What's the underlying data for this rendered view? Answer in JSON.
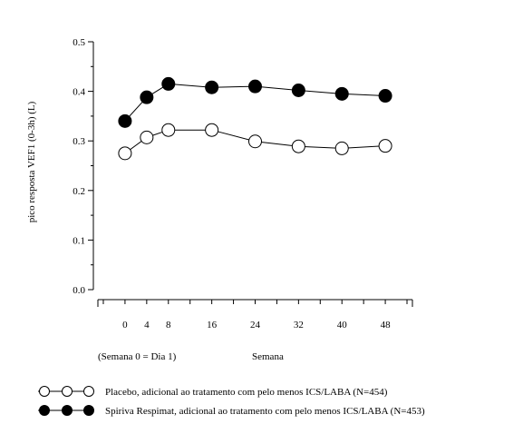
{
  "chart_data": {
    "type": "line",
    "title": "",
    "xlabel": "Semana",
    "x_note": "(Semana 0 = Dia 1)",
    "ylabel": "pico resposta VEF1 (0-3h) (L)",
    "x": [
      0,
      4,
      8,
      16,
      24,
      32,
      40,
      48
    ],
    "x_tick_labels": [
      "0",
      "4",
      "8",
      "16",
      "24",
      "32",
      "40",
      "48"
    ],
    "xlim": [
      -5,
      53
    ],
    "ylim": [
      0.0,
      0.5
    ],
    "y_ticks": [
      0.0,
      0.1,
      0.2,
      0.3,
      0.4,
      0.5
    ],
    "y_tick_labels": [
      "0.0",
      "0.1",
      "0.2",
      "0.3",
      "0.4",
      "0.5"
    ],
    "grid": false,
    "legend_position": "bottom",
    "series": [
      {
        "name": "Placebo, adicional ao tratamento com pelo menos ICS/LABA (N=454)",
        "marker": "open-circle",
        "values": [
          0.275,
          0.307,
          0.322,
          0.322,
          0.299,
          0.289,
          0.285,
          0.29
        ]
      },
      {
        "name": "Spiriva Respimat, adicional ao tratamento com pelo menos ICS/LABA (N=453)",
        "marker": "filled-circle",
        "values": [
          0.34,
          0.388,
          0.415,
          0.408,
          0.41,
          0.402,
          0.395,
          0.391
        ]
      }
    ]
  }
}
